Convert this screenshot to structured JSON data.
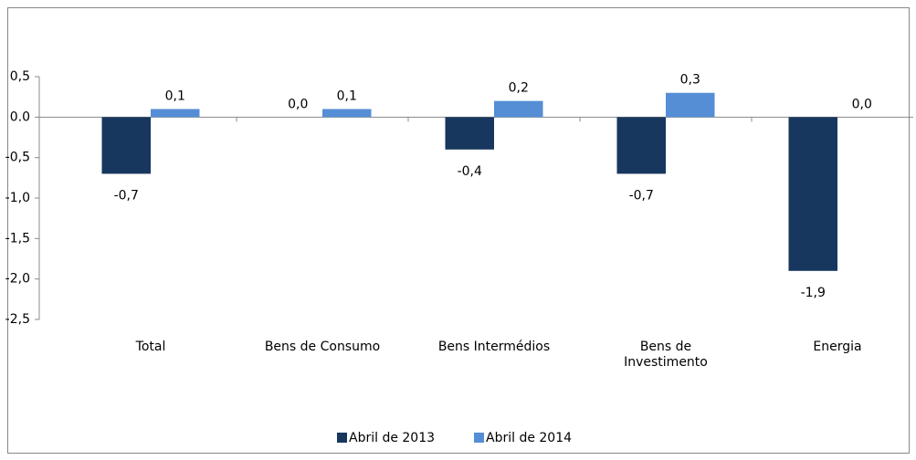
{
  "chart_data": {
    "type": "bar",
    "categories": [
      "Total",
      "Bens de Consumo",
      "Bens Intermédios",
      "Bens de\nInvestimento",
      "Energia"
    ],
    "series": [
      {
        "name": "Abril de 2013",
        "color": "#17375e",
        "values": [
          -0.7,
          0.0,
          -0.4,
          -0.7,
          -1.9
        ],
        "value_labels": [
          "-0,7",
          "0,0",
          "-0,4",
          "-0,7",
          "-1,9"
        ]
      },
      {
        "name": "Abril de 2014",
        "color": "#558ed5",
        "values": [
          0.1,
          0.1,
          0.2,
          0.3,
          0.0
        ],
        "value_labels": [
          "0,1",
          "0,1",
          "0,2",
          "0,3",
          "0,0"
        ]
      }
    ],
    "ylim": [
      -2.5,
      0.5
    ],
    "yticks": [
      {
        "value": 0.5,
        "label": "0,5"
      },
      {
        "value": 0.0,
        "label": "0.0"
      },
      {
        "value": -0.5,
        "label": "-0,5"
      },
      {
        "value": -1.0,
        "label": "-1,0"
      },
      {
        "value": -1.5,
        "label": "-1,5"
      },
      {
        "value": -2.0,
        "label": "-2,0"
      },
      {
        "value": -2.5,
        "label": "-2,5"
      }
    ],
    "legend": "bottom"
  }
}
